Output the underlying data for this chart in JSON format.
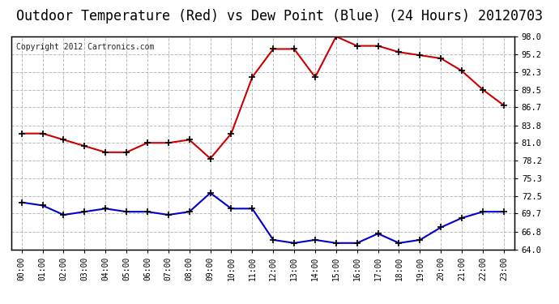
{
  "title": "Outdoor Temperature (Red) vs Dew Point (Blue) (24 Hours) 20120703",
  "copyright_text": "Copyright 2012 Cartronics.com",
  "x_labels": [
    "00:00",
    "01:00",
    "02:00",
    "03:00",
    "04:00",
    "05:00",
    "06:00",
    "07:00",
    "08:00",
    "09:00",
    "10:00",
    "11:00",
    "12:00",
    "13:00",
    "14:00",
    "15:00",
    "16:00",
    "17:00",
    "18:00",
    "19:00",
    "20:00",
    "21:00",
    "22:00",
    "23:00"
  ],
  "temp_red": [
    82.5,
    82.5,
    81.5,
    80.5,
    79.5,
    79.5,
    81.0,
    81.0,
    81.5,
    78.5,
    82.5,
    91.5,
    96.0,
    96.0,
    91.5,
    98.0,
    96.5,
    96.5,
    95.5,
    95.0,
    94.5,
    92.5,
    89.5,
    87.0
  ],
  "dew_blue": [
    71.5,
    71.0,
    69.5,
    70.0,
    70.5,
    70.0,
    70.0,
    69.5,
    70.0,
    73.0,
    70.5,
    70.5,
    65.5,
    65.0,
    65.5,
    65.0,
    65.0,
    66.5,
    65.0,
    65.5,
    67.5,
    69.0,
    70.0,
    70.0
  ],
  "ylim_left": [
    64.0,
    98.0
  ],
  "yticks_right": [
    64.0,
    66.8,
    69.7,
    72.5,
    75.3,
    78.2,
    81.0,
    83.8,
    86.7,
    89.5,
    92.3,
    95.2,
    98.0
  ],
  "bg_color": "#ffffff",
  "plot_bg_color": "#ffffff",
  "grid_color": "#bbbbbb",
  "title_color": "#000000",
  "title_fontsize": 12,
  "copyright_fontsize": 7,
  "line_red_color": "#cc0000",
  "line_blue_color": "#0000cc",
  "marker_color_red": "#000000",
  "marker_color_blue": "#000000"
}
